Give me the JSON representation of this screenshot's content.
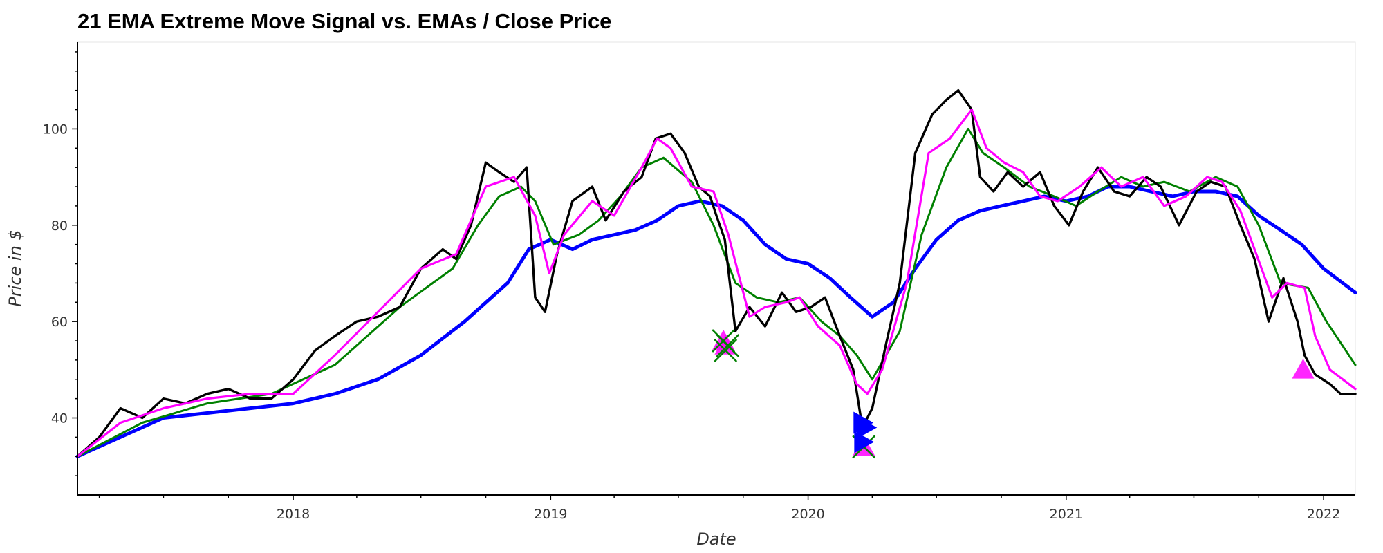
{
  "chart_data": {
    "type": "line",
    "title": "21 EMA Extreme Move Signal vs. EMAs / Close Price",
    "xlabel": "Date",
    "ylabel": "Price in $",
    "xlim": [
      "2017-03-01",
      "2022-02-15"
    ],
    "ylim": [
      24,
      118
    ],
    "x_ticks": [
      "2018",
      "2019",
      "2020",
      "2021",
      "2022"
    ],
    "x_tick_dates": [
      "2018-01-01",
      "2019-01-01",
      "2020-01-01",
      "2021-01-01",
      "2022-01-01"
    ],
    "y_ticks": [
      40,
      60,
      80,
      100
    ],
    "grid": false,
    "colors": {
      "close": "#000000",
      "ema_fast": "#ff00ff",
      "ema_mid": "#008000",
      "ema_slow": "#0000ff"
    },
    "series": [
      {
        "key": "close",
        "x": [
          "2017-03-01",
          "2017-04-01",
          "2017-05-01",
          "2017-06-01",
          "2017-07-01",
          "2017-08-01",
          "2017-09-01",
          "2017-10-01",
          "2017-11-01",
          "2017-12-01",
          "2018-01-01",
          "2018-02-01",
          "2018-03-01",
          "2018-04-01",
          "2018-05-01",
          "2018-06-01",
          "2018-07-01",
          "2018-08-01",
          "2018-08-20",
          "2018-09-10",
          "2018-10-01",
          "2018-10-20",
          "2018-11-10",
          "2018-11-28",
          "2018-12-10",
          "2018-12-24",
          "2019-01-10",
          "2019-02-01",
          "2019-03-01",
          "2019-03-20",
          "2019-04-15",
          "2019-05-10",
          "2019-05-30",
          "2019-06-20",
          "2019-07-10",
          "2019-07-30",
          "2019-08-15",
          "2019-08-24",
          "2019-09-05",
          "2019-09-20",
          "2019-10-10",
          "2019-11-01",
          "2019-11-25",
          "2019-12-15",
          "2020-01-05",
          "2020-01-25",
          "2020-02-15",
          "2020-03-05",
          "2020-03-18",
          "2020-04-01",
          "2020-04-20",
          "2020-05-10",
          "2020-06-01",
          "2020-06-25",
          "2020-07-15",
          "2020-08-01",
          "2020-08-20",
          "2020-09-01",
          "2020-09-20",
          "2020-10-10",
          "2020-11-01",
          "2020-11-25",
          "2020-12-15",
          "2021-01-05",
          "2021-01-25",
          "2021-02-15",
          "2021-03-10",
          "2021-04-01",
          "2021-04-25",
          "2021-05-15",
          "2021-06-10",
          "2021-07-05",
          "2021-07-25",
          "2021-08-15",
          "2021-09-05",
          "2021-09-25",
          "2021-10-15",
          "2021-11-05",
          "2021-11-25",
          "2021-12-05",
          "2021-12-20",
          "2022-01-10",
          "2022-01-25",
          "2022-02-15"
        ],
        "y": [
          32,
          36,
          42,
          40,
          44,
          43,
          45,
          46,
          44,
          44,
          48,
          54,
          57,
          60,
          61,
          63,
          71,
          75,
          73,
          80,
          93,
          91,
          89,
          92,
          65,
          62,
          74,
          85,
          88,
          81,
          87,
          90,
          98,
          99,
          95,
          88,
          86,
          82,
          77,
          58,
          63,
          59,
          66,
          62,
          63,
          65,
          57,
          50,
          38,
          42,
          55,
          68,
          95,
          103,
          106,
          108,
          104,
          90,
          87,
          91,
          88,
          91,
          84,
          80,
          87,
          92,
          87,
          86,
          90,
          88,
          80,
          87,
          89,
          88,
          80,
          73,
          60,
          69,
          60,
          53,
          49,
          47,
          45,
          45
        ]
      },
      {
        "key": "ema_fast",
        "x": [
          "2017-03-01",
          "2017-05-01",
          "2017-07-01",
          "2017-09-01",
          "2017-11-01",
          "2018-01-01",
          "2018-03-01",
          "2018-05-01",
          "2018-07-01",
          "2018-08-20",
          "2018-10-01",
          "2018-11-10",
          "2018-12-10",
          "2018-12-30",
          "2019-01-20",
          "2019-03-01",
          "2019-04-01",
          "2019-05-10",
          "2019-06-01",
          "2019-06-20",
          "2019-07-20",
          "2019-08-20",
          "2019-09-10",
          "2019-10-10",
          "2019-11-01",
          "2019-12-01",
          "2019-12-20",
          "2020-01-15",
          "2020-02-15",
          "2020-03-10",
          "2020-03-25",
          "2020-04-15",
          "2020-05-20",
          "2020-06-20",
          "2020-07-20",
          "2020-08-20",
          "2020-09-10",
          "2020-10-05",
          "2020-11-01",
          "2020-11-25",
          "2020-12-20",
          "2021-01-20",
          "2021-02-20",
          "2021-03-20",
          "2021-04-20",
          "2021-05-20",
          "2021-06-20",
          "2021-07-20",
          "2021-08-10",
          "2021-09-05",
          "2021-09-25",
          "2021-10-20",
          "2021-11-10",
          "2021-12-05",
          "2021-12-20",
          "2022-01-10",
          "2022-02-15"
        ],
        "y": [
          32,
          39,
          42,
          44,
          45,
          45,
          53,
          62,
          71,
          74,
          88,
          90,
          82,
          70,
          78,
          85,
          82,
          92,
          98,
          96,
          88,
          87,
          78,
          61,
          63,
          64,
          65,
          59,
          55,
          47,
          45,
          50,
          68,
          95,
          98,
          104,
          96,
          93,
          91,
          86,
          85,
          88,
          92,
          88,
          90,
          84,
          86,
          90,
          89,
          83,
          75,
          65,
          68,
          67,
          57,
          50,
          46
        ]
      },
      {
        "key": "ema_mid",
        "x": [
          "2017-03-01",
          "2017-06-01",
          "2017-09-01",
          "2017-12-01",
          "2018-03-01",
          "2018-06-01",
          "2018-08-15",
          "2018-09-20",
          "2018-10-20",
          "2018-11-20",
          "2018-12-10",
          "2019-01-05",
          "2019-02-10",
          "2019-03-10",
          "2019-04-10",
          "2019-05-10",
          "2019-06-10",
          "2019-07-20",
          "2019-08-20",
          "2019-09-20",
          "2019-10-20",
          "2019-11-20",
          "2019-12-20",
          "2020-01-20",
          "2020-02-15",
          "2020-03-10",
          "2020-04-01",
          "2020-05-10",
          "2020-06-10",
          "2020-07-15",
          "2020-08-15",
          "2020-09-05",
          "2020-10-05",
          "2020-11-10",
          "2020-12-15",
          "2021-01-15",
          "2021-02-15",
          "2021-03-20",
          "2021-04-20",
          "2021-05-20",
          "2021-06-25",
          "2021-08-01",
          "2021-09-01",
          "2021-10-01",
          "2021-11-01",
          "2021-12-10",
          "2022-01-05",
          "2022-02-15"
        ],
        "y": [
          32,
          39,
          43,
          45,
          51,
          63,
          71,
          80,
          86,
          88,
          85,
          76,
          78,
          81,
          86,
          92,
          94,
          89,
          80,
          68,
          65,
          64,
          65,
          60,
          57,
          53,
          48,
          58,
          78,
          92,
          100,
          95,
          92,
          88,
          86,
          84,
          87,
          90,
          88,
          89,
          87,
          90,
          88,
          80,
          68,
          67,
          60,
          51
        ]
      },
      {
        "key": "ema_slow",
        "x": [
          "2017-03-01",
          "2017-05-01",
          "2017-07-01",
          "2017-09-01",
          "2017-11-01",
          "2018-01-01",
          "2018-03-01",
          "2018-05-01",
          "2018-07-01",
          "2018-09-01",
          "2018-11-01",
          "2018-12-01",
          "2019-01-01",
          "2019-02-01",
          "2019-03-01",
          "2019-04-01",
          "2019-05-01",
          "2019-06-01",
          "2019-07-01",
          "2019-08-01",
          "2019-09-01",
          "2019-10-01",
          "2019-11-01",
          "2019-12-01",
          "2020-01-01",
          "2020-02-01",
          "2020-03-01",
          "2020-04-01",
          "2020-05-01",
          "2020-06-01",
          "2020-07-01",
          "2020-08-01",
          "2020-09-01",
          "2020-10-01",
          "2020-11-01",
          "2020-12-01",
          "2021-01-01",
          "2021-02-01",
          "2021-03-01",
          "2021-04-01",
          "2021-05-01",
          "2021-06-01",
          "2021-07-01",
          "2021-08-01",
          "2021-09-01",
          "2021-10-01",
          "2021-11-01",
          "2021-12-01",
          "2022-01-01",
          "2022-02-15"
        ],
        "y": [
          32,
          36,
          40,
          41,
          42,
          43,
          45,
          48,
          53,
          60,
          68,
          75,
          77,
          75,
          77,
          78,
          79,
          81,
          84,
          85,
          84,
          81,
          76,
          73,
          72,
          69,
          65,
          61,
          64,
          71,
          77,
          81,
          83,
          84,
          85,
          86,
          85,
          86,
          88,
          88,
          87,
          86,
          87,
          87,
          86,
          82,
          79,
          76,
          71,
          66
        ]
      }
    ],
    "markers": [
      {
        "shape": "triangle-up",
        "color": "#ff00ff",
        "x": "2019-09-03",
        "y": 56
      },
      {
        "shape": "triangle-up",
        "color": "#ff00ff",
        "x": "2019-09-06",
        "y": 55
      },
      {
        "shape": "x",
        "color": "#008000",
        "x": "2019-09-03",
        "y": 56
      },
      {
        "shape": "x",
        "color": "#008000",
        "x": "2019-09-06",
        "y": 54
      },
      {
        "shape": "x",
        "color": "#008000",
        "x": "2019-09-09",
        "y": 55
      },
      {
        "shape": "triangle-right",
        "color": "#0000ff",
        "x": "2020-03-18",
        "y": 39
      },
      {
        "shape": "triangle-right",
        "color": "#0000ff",
        "x": "2020-03-23",
        "y": 38
      },
      {
        "shape": "triangle-up",
        "color": "#ff00ff",
        "x": "2020-03-20",
        "y": 34
      },
      {
        "shape": "x",
        "color": "#008000",
        "x": "2020-03-20",
        "y": 34
      },
      {
        "shape": "triangle-right",
        "color": "#0000ff",
        "x": "2020-03-19",
        "y": 35
      },
      {
        "shape": "triangle-up",
        "color": "#ff00ff",
        "x": "2021-12-03",
        "y": 50
      }
    ]
  }
}
